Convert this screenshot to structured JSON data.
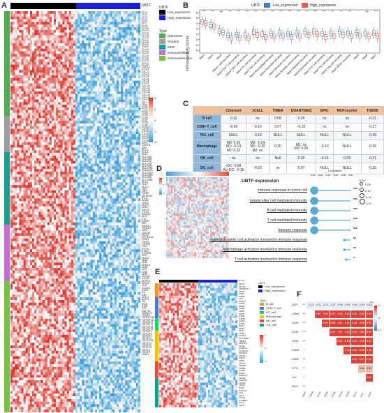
{
  "panels": {
    "A": "A",
    "B": "B",
    "C": "C",
    "D": "D",
    "E": "E",
    "F": "F"
  },
  "panelA": {
    "group_title": "UBTF",
    "group_legend_title": "UBTF",
    "group_legend": [
      "Low_expression",
      "High_expression"
    ],
    "type_legend_title": "Type",
    "type_legend": [
      "chemokine",
      "receptor",
      "MHC",
      "immunoinhibitor",
      "immunostimulator"
    ],
    "type_colors": [
      "#4caf50",
      "#9e9e9e",
      "#1a9e8f",
      "#c86dd7",
      "#7ac143"
    ],
    "scale_ticks": [
      "2",
      "1",
      "0",
      "-1",
      "-2"
    ],
    "genes": [
      "CCL1",
      "CCL2",
      "CCL3",
      "CCL4",
      "CCL5",
      "CCL7",
      "CCL8",
      "CCL11",
      "CCL13",
      "CCL14",
      "CCL15",
      "CCL16",
      "CCL17",
      "CCL18",
      "CCL19",
      "CCL20",
      "CCL21",
      "CCL22",
      "CCL23",
      "CCL24",
      "CCL25",
      "CCL26",
      "CCL27",
      "CCL28",
      "CX3CL1",
      "CXCL1",
      "CXCL2",
      "CXCL3",
      "CXCL5",
      "CXCL6",
      "CXCL8",
      "CXCL9",
      "CXCL10",
      "CXCL11",
      "CXCL12",
      "CXCL13",
      "CXCL14",
      "CXCL16",
      "CXCL17",
      "XCL1",
      "XCL2",
      "CCR1",
      "CCR2",
      "CCR3",
      "CCR4",
      "CCR5",
      "CCR6",
      "CCR7",
      "CCR8",
      "CCR9",
      "CCR10",
      "CXCR1",
      "CXCR2",
      "CXCR3",
      "CXCR4",
      "CXCR5",
      "CXCR6",
      "XCR1",
      "CX3CR1",
      "B2M",
      "HLA-A",
      "HLA-B",
      "HLA-C",
      "HLA-DMA",
      "HLA-DMB",
      "HLA-DOA",
      "HLA-DOB",
      "HLA-DPA1",
      "HLA-DPB1",
      "HLA-DQA1",
      "HLA-DQA2",
      "HLA-DQB1",
      "HLA-DRA",
      "HLA-DRB1",
      "HLA-E",
      "HLA-F",
      "HLA-G",
      "TAP1",
      "TAP2",
      "TAPBP",
      "ADORA2A",
      "BTLA",
      "CD160",
      "CD244",
      "CD274",
      "CD96",
      "CSF1R",
      "CTLA4",
      "HAVCR2",
      "IDO1",
      "IL10",
      "IL10RB",
      "KDR",
      "KIR2DL1",
      "KIR2DL3",
      "LAG3",
      "LGALS9",
      "PDCD1",
      "PDCD1LG2",
      "PVRL2",
      "TGFB1",
      "TGFBR1",
      "TIGIT",
      "VTCN1",
      "BTNL2",
      "C10orf54",
      "CD27",
      "CD276",
      "CD28",
      "CD40",
      "CD40LG",
      "CD48",
      "CD70",
      "CD80",
      "CD86",
      "CXCL12",
      "CXCR4",
      "ENTPD1",
      "HHLA2",
      "ICOS",
      "ICOSLG",
      "IL2RA",
      "IL6",
      "IL6R",
      "KLRC1",
      "KLRK1",
      "LTA",
      "MICB",
      "NT5E",
      "PVR",
      "RAET1E",
      "TMEM173",
      "TMIGD2",
      "TNFRSF13B",
      "TNFRSF13C",
      "TNFRSF14",
      "TNFRSF17",
      "TNFRSF18",
      "TNFRSF25",
      "TNFRSF4",
      "TNFRSF8",
      "TNFRSF9",
      "TNFSF13",
      "TNFSF13B",
      "TNFSF14",
      "TNFSF15",
      "TNFSF18",
      "TNFSF4",
      "TNFSF9",
      "ULBP1"
    ]
  },
  "panelB": {
    "legend_title": "UBTF",
    "legend": [
      "Low_expression",
      "High_expression"
    ],
    "ylabel": "Immune activity scores",
    "yticks": [
      "8",
      "6",
      "4",
      "2",
      "0",
      "-2",
      "-4",
      "-6"
    ],
    "steps": [
      "Step1",
      "Step2",
      "Step3",
      "Step4 T cell recruiting",
      "Step4 CD4 T cell recruiting",
      "Step4 CD8 T cell recruiting",
      "Step4 Th1 cell recruiting",
      "Step4 Th22 cell recruiting",
      "Step4 Macrophage recruiting",
      "Step4 Neutrophil recruiting",
      "Step4 Monocyte recruiting",
      "Step4 Dendritic cell recruiting",
      "Step4 Basophil recruiting",
      "Step4 Eosinophil recruiting",
      "Step4 Th17 cell recruiting",
      "Step4 Th2 cell recruiting",
      "Step4 Treg cell recruiting",
      "Step4 MDSC recruiting",
      "Step5",
      "Step6",
      "Step7"
    ],
    "sig": [
      "***",
      "***",
      "ns",
      "***",
      "***",
      "***",
      "***",
      "***",
      "***",
      "***",
      "***",
      "***",
      "***",
      "***",
      "***",
      "***",
      "***",
      "***",
      "*",
      "ns",
      "***"
    ]
  },
  "panelC": {
    "headers": [
      "",
      "Cibersort",
      "xCELL",
      "TIMER",
      "QUANTISEQ",
      "EPIC",
      "MCPcounter",
      "TISIDB"
    ],
    "rows": [
      [
        "B cell",
        "0.11",
        "ns",
        "0.08",
        "0.25",
        "ns",
        "ns",
        "-0.31"
      ],
      [
        "CD8+ T_cell",
        "-0.06",
        "-0.10",
        "0.07",
        "-0.10",
        "ns",
        "ns",
        "-0.37"
      ],
      [
        "Th1_cell",
        "NULL",
        "-0.19",
        "NULL",
        "NULL",
        "NULL",
        "NULL",
        "-0.45"
      ],
      [
        "Macrophage",
        "M0: 0.10\nM1: -0.13\nM2: 0.13",
        "M0: -0.24\nM1: -0.33\nM2: ns",
        "0.20",
        "M1: ns\nM2: 0.26",
        "-0.13",
        "NULL",
        "-0.26"
      ],
      [
        "NK_cell",
        "ns",
        "ns",
        "Null",
        "0.32",
        "-0.16",
        "0.05",
        "-0.21"
      ],
      [
        "DC_cell",
        "rDC: 0.08\nAct DC: -0.15",
        "-0.20",
        "ns",
        "0.07",
        "NULL",
        "NULL",
        "-0.35"
      ]
    ]
  },
  "panelD": {
    "title": "UBTF expression",
    "scale_ticks": [
      "2",
      "1",
      "0",
      "-1",
      "-2"
    ],
    "terms": [
      "immune response to tumor cell",
      "natural killer cell mediated immunity",
      "B cell mediated immunity",
      "T cell mediated immunity",
      "Immune response",
      "myeloid dendritic cell activation involved in immune response",
      "macrophage activation involved in immune response",
      "T cell activation involved in immune response"
    ],
    "stars": [
      "***",
      "***",
      "***",
      "***",
      "***",
      "**",
      "**",
      "*"
    ],
    "corr_label": "Correlation",
    "corr_ticks": [
      "-0.25",
      "-0.20",
      "-0.15",
      "-0.10",
      "-0.05",
      "0.00"
    ],
    "corr_values": [
      -0.24,
      -0.24,
      -0.24,
      -0.24,
      -0.24,
      -0.04,
      -0.04,
      -0.03
    ],
    "size_legend_title": "|Cor|",
    "size_legend": [
      "0.05",
      "0.10",
      "0.15",
      "0.20"
    ]
  },
  "panelE": {
    "group_label": "Group",
    "legend_title": "UBTF",
    "legend": [
      "Low_expression",
      "High_expression"
    ],
    "type_label": "Type",
    "type_legend_title": "Type",
    "type_legend": [
      "B_cell",
      "CD8+ T_cell",
      "DC_cell",
      "Macrophage",
      "NK_cell",
      "Th1_cell"
    ],
    "type_colors": [
      "#f0932b",
      "#4a7bd0",
      "#2ecc71",
      "#f1c40f",
      "#e74c3c",
      "#16a085"
    ],
    "scale_ticks": [
      "2",
      "1",
      "0",
      "-1",
      "-2"
    ],
    "genes": [
      "CD19",
      "CD79A",
      "TNFRSF17",
      "CD38",
      "CD8A",
      "CD8B",
      "CD2",
      "FCRL2",
      "GZMK",
      "CD3D",
      "CD3E",
      "CD3G",
      "CD3D",
      "GZMA",
      "GZMB",
      "GZMH",
      "GZMK",
      "NKG7",
      "CD8A",
      "NKG7",
      "CD8B",
      "CSAR1",
      "HLA-DPB1",
      "TREM1",
      "MS4A6A",
      "CD1E",
      "FCER1A",
      "CLEC10A",
      "MS4A4A",
      "CD163",
      "VSIG4",
      "CD68",
      "CSF1R",
      "TREM2",
      "KLRB1",
      "KLRD1",
      "NCR1",
      "KIR2DL4",
      "CD160",
      "FCGR3A",
      "CD226",
      "TBX21",
      "IFNG",
      "CXCL10",
      "CD4",
      "PRF1",
      "STAT4",
      "IL12RB2",
      "CCL5",
      "TIGIT"
    ]
  },
  "panelF": {
    "labels": [
      "UBTF",
      "GZMA",
      "CD3D",
      "CD3E",
      "CD3G",
      "GZMH",
      "GZMK",
      "GPT2",
      "LCK",
      "NKG7"
    ],
    "rows": [
      [
        "***",
        "-0.13",
        "-0.11",
        "-0.12",
        "-0.07",
        "-0.06",
        "-0.09",
        "-0.09",
        "-0.09",
        "-0.14"
      ],
      [
        "***",
        "",
        "0.89",
        "0.93",
        "0.92",
        "0.82",
        "0.84",
        "0.94",
        "0.93",
        "0.94"
      ],
      [
        "***",
        "",
        "",
        "0.90",
        "0.96",
        "0.81",
        "0.97",
        "0.94",
        "0.91",
        "0.93"
      ],
      [
        "***",
        "",
        "",
        "",
        "0.91",
        "0.81",
        "0.92",
        "0.90",
        "0.90",
        "0.90"
      ],
      [
        "***",
        "",
        "",
        "",
        "",
        "0.81",
        "0.94",
        "0.92",
        "0.94",
        "0.91"
      ],
      [
        "*",
        "",
        "",
        "",
        "",
        "",
        "0.78",
        "0.82",
        "0.90",
        "0.78"
      ],
      [
        "***",
        "",
        "",
        "",
        "",
        "",
        "",
        "0.91",
        "0.97",
        "0.81"
      ],
      [
        "**",
        "",
        "",
        "",
        "",
        "",
        "",
        "",
        "0.08",
        "0.50"
      ],
      [
        "*",
        "",
        "",
        "",
        "",
        "",
        "",
        "",
        "",
        "0.81"
      ],
      [
        "***",
        "",
        "",
        "",
        "",
        "",
        "",
        "",
        "",
        ""
      ]
    ],
    "legend_title": "Cor",
    "legend_ticks": [
      "1.0",
      "0.5",
      "0.0",
      "-0.5",
      "-1.0"
    ]
  }
}
